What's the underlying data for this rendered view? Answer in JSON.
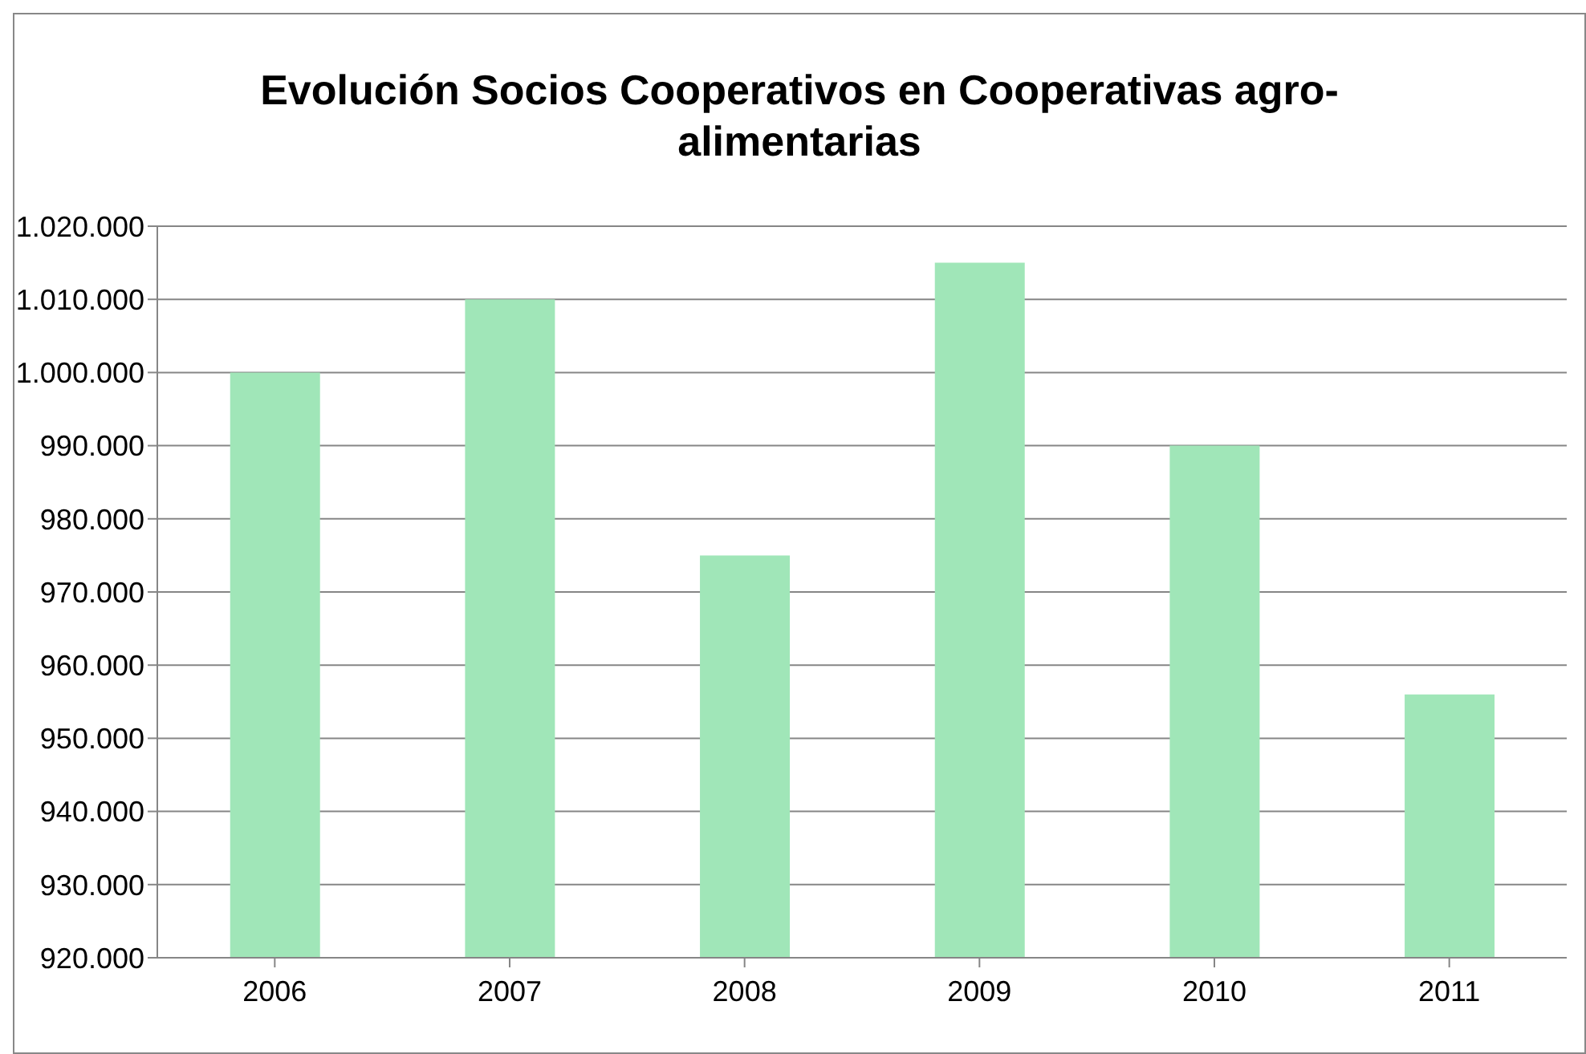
{
  "chart_data": {
    "type": "bar",
    "title": "Evolución Socios Cooperativos en Cooperativas agro-alimentarias",
    "categories": [
      "2006",
      "2007",
      "2008",
      "2009",
      "2010",
      "2011"
    ],
    "values": [
      1000000,
      1010000,
      975000,
      1015000,
      990000,
      956000
    ],
    "color": "#a0e6b8",
    "ylim": [
      920000,
      1020000
    ],
    "yticks": [
      {
        "value": 920000,
        "label": "920.000"
      },
      {
        "value": 930000,
        "label": "930.000"
      },
      {
        "value": 940000,
        "label": "940.000"
      },
      {
        "value": 950000,
        "label": "950.000"
      },
      {
        "value": 960000,
        "label": "960.000"
      },
      {
        "value": 970000,
        "label": "970.000"
      },
      {
        "value": 980000,
        "label": "980.000"
      },
      {
        "value": 990000,
        "label": "990.000"
      },
      {
        "value": 1000000,
        "label": "1.000.000"
      },
      {
        "value": 1010000,
        "label": "1.010.000"
      },
      {
        "value": 1020000,
        "label": "1.020.000"
      }
    ],
    "grid": "y",
    "legend": false
  }
}
